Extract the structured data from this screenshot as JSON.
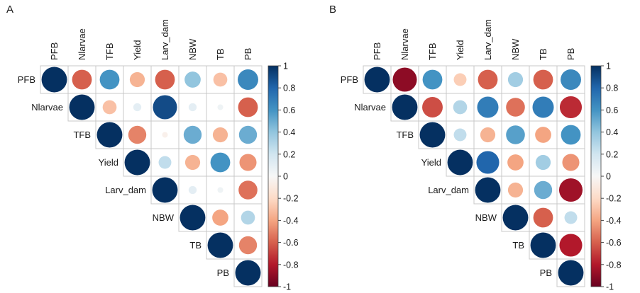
{
  "figure": {
    "background": "#ffffff",
    "panels": [
      {
        "label": "A"
      },
      {
        "label": "B"
      }
    ]
  },
  "chart_data": [
    {
      "type": "heatmap",
      "subtype": "correlation-matrix-upper-triangle-circles",
      "panel_label": "A",
      "variables": [
        "PFB",
        "Nlarvae",
        "TFB",
        "Yield",
        "Larv_dam",
        "NBW",
        "TB",
        "PB"
      ],
      "matrix": [
        [
          1,
          -0.6,
          0.6,
          -0.35,
          -0.6,
          0.4,
          -0.3,
          0.65
        ],
        [
          null,
          1,
          -0.3,
          0.1,
          0.9,
          0.1,
          0.05,
          -0.6
        ],
        [
          null,
          null,
          1,
          -0.5,
          -0.05,
          0.5,
          -0.35,
          0.5
        ],
        [
          null,
          null,
          null,
          1,
          0.25,
          -0.35,
          0.6,
          -0.45
        ],
        [
          null,
          null,
          null,
          null,
          1,
          0.1,
          0.05,
          -0.55
        ],
        [
          null,
          null,
          null,
          null,
          null,
          1,
          -0.4,
          0.3
        ],
        [
          null,
          null,
          null,
          null,
          null,
          null,
          1,
          -0.5
        ],
        [
          null,
          null,
          null,
          null,
          null,
          null,
          null,
          1
        ]
      ],
      "colorbar": {
        "max": 1,
        "min": -1,
        "tick_labels": [
          "1",
          "0.8",
          "0.6",
          "0.4",
          "0.2",
          "0",
          "-0.2",
          "-0.4",
          "-0.6",
          "-0.8",
          "-1"
        ]
      }
    },
    {
      "type": "heatmap",
      "subtype": "correlation-matrix-upper-triangle-circles",
      "panel_label": "B",
      "variables": [
        "PFB",
        "Nlarvae",
        "TFB",
        "Yield",
        "Larv_dam",
        "NBW",
        "TB",
        "PB"
      ],
      "matrix": [
        [
          1,
          -0.9,
          0.6,
          -0.25,
          -0.6,
          0.35,
          -0.6,
          0.65
        ],
        [
          null,
          1,
          -0.65,
          0.3,
          0.7,
          -0.55,
          0.7,
          -0.75
        ],
        [
          null,
          null,
          1,
          0.25,
          -0.35,
          0.55,
          -0.4,
          0.6
        ],
        [
          null,
          null,
          null,
          1,
          0.8,
          -0.4,
          0.35,
          -0.45
        ],
        [
          null,
          null,
          null,
          null,
          1,
          -0.35,
          0.5,
          -0.85
        ],
        [
          null,
          null,
          null,
          null,
          null,
          1,
          -0.6,
          0.25
        ],
        [
          null,
          null,
          null,
          null,
          null,
          null,
          1,
          -0.8
        ],
        [
          null,
          null,
          null,
          null,
          null,
          null,
          null,
          1
        ]
      ],
      "colorbar": {
        "max": 1,
        "min": -1,
        "tick_labels": [
          "1",
          "0.8",
          "0.6",
          "0.4",
          "0.2",
          "0",
          "-0.2",
          "-0.4",
          "-0.6",
          "-0.8",
          "-1"
        ]
      }
    }
  ],
  "palette": {
    "diverging_stops": [
      {
        "t": -1.0,
        "color": "#67001f"
      },
      {
        "t": -0.8,
        "color": "#b2182b"
      },
      {
        "t": -0.6,
        "color": "#d6604d"
      },
      {
        "t": -0.4,
        "color": "#f4a582"
      },
      {
        "t": -0.2,
        "color": "#fddbc7"
      },
      {
        "t": 0.0,
        "color": "#f7f7f7"
      },
      {
        "t": 0.2,
        "color": "#d1e5f0"
      },
      {
        "t": 0.4,
        "color": "#92c5de"
      },
      {
        "t": 0.6,
        "color": "#4393c3"
      },
      {
        "t": 0.8,
        "color": "#2166ac"
      },
      {
        "t": 1.0,
        "color": "#053061"
      }
    ],
    "grid_line": "#c8c8c8",
    "colorbar_border": "#444444",
    "label_color": "#1a1a1a"
  }
}
